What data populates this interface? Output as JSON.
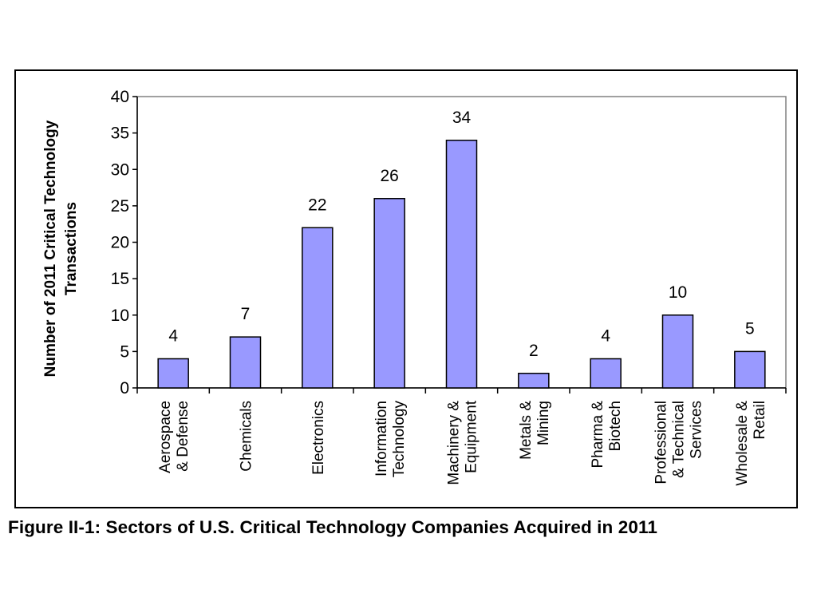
{
  "figure": {
    "caption": "Figure II-1: Sectors of U.S. Critical Technology Companies Acquired in 2011"
  },
  "chart_data": {
    "type": "bar",
    "title": "",
    "xlabel": "",
    "ylabel_lines": [
      "Number of 2011 Critical Technology",
      "Transactions"
    ],
    "ylim": [
      0,
      40
    ],
    "yticks": [
      0,
      5,
      10,
      15,
      20,
      25,
      30,
      35,
      40
    ],
    "grid": false,
    "legend": "none",
    "bar_color": "#9999ff",
    "plot_border_color": "#808080",
    "categories": [
      [
        "Aerospace",
        "& Defense"
      ],
      [
        "Chemicals"
      ],
      [
        "Electronics"
      ],
      [
        "Information",
        "Technology"
      ],
      [
        "Machinery &",
        "Equipment"
      ],
      [
        "Metals &",
        "Mining"
      ],
      [
        "Pharma &",
        "Biotech"
      ],
      [
        "Professional",
        "& Technical",
        "Services"
      ],
      [
        "Wholesale &",
        "Retail"
      ]
    ],
    "values": [
      4,
      7,
      22,
      26,
      34,
      2,
      4,
      10,
      5
    ],
    "data_labels": [
      "4",
      "7",
      "22",
      "26",
      "34",
      "2",
      "4",
      "10",
      "5"
    ]
  }
}
